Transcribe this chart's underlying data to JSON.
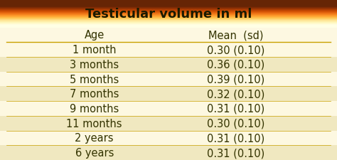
{
  "title": "Testicular volume in ml",
  "title_bg_top": "#e8a800",
  "title_bg_bottom": "#c88000",
  "title_text_color": "#1a1a00",
  "header": [
    "Age",
    "Mean  (sd)"
  ],
  "rows": [
    [
      "1 month",
      "0.30 (0.10)"
    ],
    [
      "3 months",
      "0.36 (0.10)"
    ],
    [
      "5 months",
      "0.39 (0.10)"
    ],
    [
      "7 months",
      "0.32 (0.10)"
    ],
    [
      "9 months",
      "0.31 (0.10)"
    ],
    [
      "11 months",
      "0.30 (0.10)"
    ],
    [
      "2 years",
      "0.31 (0.10)"
    ],
    [
      "6 years",
      "0.31 (0.10)"
    ]
  ],
  "row_colors": [
    "#fdf8e1",
    "#f0e8c0"
  ],
  "header_bg_color": "#fdf8e1",
  "header_text_color": "#333300",
  "cell_text_color": "#333300",
  "border_color": "#c8a000",
  "fig_bg_color": "#fdf8e1",
  "title_fontsize": 13,
  "header_fontsize": 10.5,
  "cell_fontsize": 10.5
}
